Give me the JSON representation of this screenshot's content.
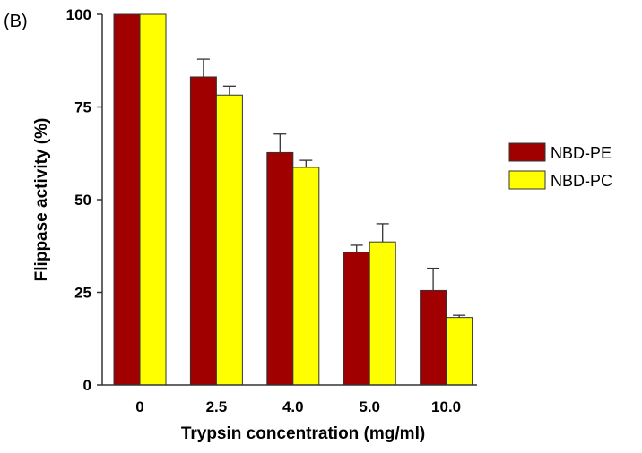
{
  "chart_data": {
    "type": "bar",
    "panel_label": "(B)",
    "xlabel": "Trypsin concentration (mg/ml)",
    "ylabel": "Flippase activity (%)",
    "ylim": [
      0,
      100
    ],
    "yticks": [
      "0",
      "25",
      "50",
      "75",
      "100"
    ],
    "categories": [
      "0",
      "2.5",
      "4.0",
      "5.0",
      "10.0"
    ],
    "series": [
      {
        "name": "NBD-PE",
        "color": "#a00000",
        "values": [
          100,
          83.1,
          62.7,
          35.8,
          25.5
        ],
        "error_upper": [
          100,
          87.9,
          67.7,
          37.7,
          31.5
        ]
      },
      {
        "name": "NBD-PC",
        "color": "#ffff00",
        "values": [
          100,
          78.2,
          58.7,
          38.6,
          18.2
        ],
        "error_upper": [
          100,
          80.6,
          60.6,
          43.5,
          18.8
        ]
      }
    ],
    "legend": "right",
    "grid": false
  }
}
